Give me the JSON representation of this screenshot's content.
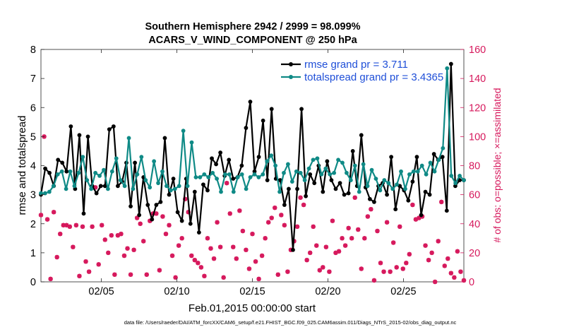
{
  "chart_data": {
    "type": "line",
    "title_line1": "Southern Hemisphere 2942 / 2999 = 98.099%",
    "title_line2": "ACARS_V_WIND_COMPONENT @ 250 hPa",
    "xlabel": "Feb.01,2015 00:00:00 start",
    "ylabel_left": "rmse and totalspread",
    "ylabel_right": "# of obs: o=possible; ×=assimilated",
    "footer": "data file: /Users/raeder/DAI/ATM_forcXX/CAM6_setup/f.e21.FHIST_BGC.f09_025.CAM6assim.011/Diags_NTrS_2015-02/obs_diag_output.nc",
    "xlim": [
      1,
      29.0
    ],
    "ylim_left": [
      0,
      8
    ],
    "ylim_right": [
      0,
      160
    ],
    "xticks": [
      {
        "value": 5,
        "label": "02/05"
      },
      {
        "value": 10,
        "label": "02/10"
      },
      {
        "value": 15,
        "label": "02/15"
      },
      {
        "value": 20,
        "label": "02/20"
      },
      {
        "value": 25,
        "label": "02/25"
      }
    ],
    "yticks_left": [
      "0",
      "1",
      "2",
      "3",
      "4",
      "5",
      "6",
      "7",
      "8"
    ],
    "yticks_right": [
      "0",
      "20",
      "40",
      "60",
      "80",
      "100",
      "120",
      "140",
      "160"
    ],
    "colors": {
      "rmse": "#000000",
      "spread": "#0f8a86",
      "obs": "#d6185c",
      "legend_text": "#1f4fd8"
    },
    "series": [
      {
        "name": "rmse grand pr = 3.711",
        "axis": "left",
        "values": [
          3.0,
          3.9,
          3.75,
          3.3,
          4.2,
          4.1,
          3.8,
          5.35,
          3.2,
          5.05,
          2.35,
          5.0,
          3.3,
          3.05,
          3.3,
          3.3,
          5.25,
          5.35,
          3.3,
          3.45,
          4.1,
          2.6,
          4.1,
          2.3,
          3.6,
          2.65,
          2.15,
          2.65,
          2.75,
          4.95,
          3.0,
          3.55,
          2.4,
          2.1,
          3.55,
          2.0,
          3.1,
          1.7,
          3.35,
          3.15,
          4.25,
          4.05,
          4.45,
          3.65,
          4.2,
          3.55,
          3.6,
          4.0,
          5.3,
          6.2,
          3.8,
          4.3,
          5.55,
          3.5,
          5.95,
          3.55,
          3.5,
          2.65,
          3.2,
          1.1,
          3.2,
          5.95,
          2.95,
          3.7,
          3.4,
          4.0,
          3.1,
          4.15,
          3.5,
          3.2,
          3.4,
          3.0,
          3.05,
          4.5,
          3.3,
          5.05,
          3.25,
          2.85,
          2.75,
          3.3,
          3.4,
          3.0,
          4.3,
          2.5,
          3.3,
          3.15,
          2.8,
          3.45,
          4.3,
          2.3,
          3.1,
          3.0,
          4.4,
          4.2,
          4.3,
          2.45,
          7.5,
          3.3,
          3.5,
          3.5
        ]
      },
      {
        "name": "totalspread grand pr = 3.4365",
        "axis": "left",
        "values": [
          3.05,
          3.05,
          3.1,
          3.3,
          3.7,
          3.8,
          3.2,
          3.8,
          3.3,
          3.75,
          4.3,
          3.5,
          3.2,
          3.75,
          3.65,
          3.85,
          3.2,
          3.8,
          4.25,
          3.5,
          3.3,
          4.95,
          3.2,
          3.7,
          4.3,
          3.5,
          3.25,
          4.15,
          3.4,
          3.8,
          3.3,
          3.15,
          3.2,
          3.3,
          5.2,
          3.3,
          4.8,
          3.6,
          3.6,
          3.7,
          3.6,
          3.75,
          3.55,
          3.1,
          3.7,
          3.7,
          3.1,
          3.6,
          3.7,
          3.2,
          3.6,
          3.7,
          3.6,
          3.7,
          4.15,
          4.35,
          4.0,
          3.1,
          3.75,
          4.05,
          3.45,
          3.8,
          3.75,
          3.5,
          3.9,
          4.2,
          4.25,
          3.7,
          3.9,
          3.7,
          3.75,
          4.2,
          4.1,
          3.75,
          3.5,
          4.0,
          3.1,
          4.05,
          3.3,
          3.85,
          3.55,
          3.15,
          3.5,
          3.4,
          3.2,
          3.35,
          3.8,
          3.2,
          3.7,
          3.8,
          3.8,
          4.0,
          3.7,
          4.1,
          3.8,
          4.2,
          4.6,
          7.35,
          3.65,
          3.4,
          3.65,
          3.5
        ]
      },
      {
        "name": "obs possible",
        "axis": "right",
        "marker": "circle",
        "values": [
          46,
          100,
          43,
          2,
          48,
          17,
          33,
          39,
          39,
          38,
          24,
          39,
          4,
          38,
          14,
          7,
          38,
          65,
          12,
          39,
          29,
          20,
          32,
          5,
          32,
          33,
          18,
          23,
          5,
          22,
          44,
          40,
          28,
          5,
          42,
          47,
          47,
          8,
          45,
          33,
          39,
          18,
          3,
          25,
          30,
          57,
          48,
          18,
          15,
          13,
          10,
          4,
          30,
          23,
          16,
          41,
          24,
          3,
          68,
          47,
          24,
          16,
          49,
          35,
          22,
          9,
          33,
          14,
          2,
          18,
          30,
          41,
          44,
          51,
          5,
          46,
          39,
          7,
          22,
          28,
          38,
          58,
          53,
          15,
          20,
          38,
          25,
          8,
          10,
          24,
          7,
          42,
          20,
          21,
          30,
          25,
          37,
          30,
          58,
          36,
          9,
          30,
          45,
          50,
          1,
          35,
          13,
          7,
          41,
          7,
          27,
          10,
          38,
          9,
          13,
          19,
          53,
          43,
          44,
          45,
          25,
          15,
          20,
          0,
          28,
          55,
          11,
          16,
          6,
          3,
          21,
          7,
          1
        ]
      },
      {
        "name": "obs assimilated",
        "axis": "right",
        "marker": "asterisk",
        "values": [
          46,
          100,
          43,
          2,
          48,
          17,
          33,
          39,
          39,
          38,
          24,
          39,
          4,
          38,
          14,
          7,
          38,
          65,
          12,
          39,
          29,
          20,
          32,
          5,
          32,
          33,
          18,
          23,
          5,
          22,
          44,
          40,
          28,
          5,
          42,
          47,
          47,
          8,
          45,
          33,
          39,
          18,
          3,
          25,
          30,
          57,
          48,
          18,
          15,
          13,
          10,
          4,
          30,
          23,
          16,
          41,
          24,
          3,
          68,
          47,
          24,
          16,
          49,
          35,
          22,
          9,
          33,
          14,
          2,
          18,
          30,
          41,
          44,
          51,
          5,
          46,
          39,
          7,
          22,
          28,
          38,
          58,
          53,
          15,
          20,
          38,
          25,
          8,
          10,
          24,
          7,
          42,
          20,
          21,
          30,
          25,
          37,
          30,
          58,
          36,
          9,
          30,
          45,
          50,
          1,
          35,
          13,
          7,
          41,
          7,
          27,
          10,
          38,
          9,
          13,
          19,
          53,
          43,
          44,
          45,
          25,
          15,
          20,
          0,
          28,
          55,
          11,
          16,
          6,
          3,
          21,
          7,
          1
        ]
      }
    ]
  }
}
